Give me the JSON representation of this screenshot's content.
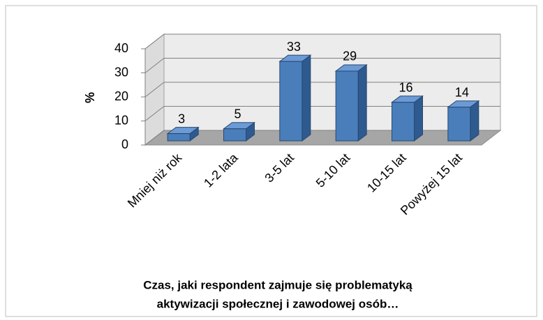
{
  "chart_data": {
    "type": "bar3d",
    "title": [
      "Czas, jaki respondent zajmuje się problematyką",
      "aktywizacji społecznej i zawodowej osób…"
    ],
    "y_label": "%",
    "categories": [
      "Mniej niż rok",
      "1-2 lata",
      "3-5 lat",
      "5-10 lat",
      "10-15 lat",
      "Powyżej 15 lat"
    ],
    "values": [
      3,
      5,
      33,
      29,
      16,
      14
    ],
    "color": "#4a7ebb",
    "ylim": [
      0,
      40
    ],
    "yticks": [
      0,
      10,
      20,
      30,
      40
    ],
    "grid": true
  }
}
